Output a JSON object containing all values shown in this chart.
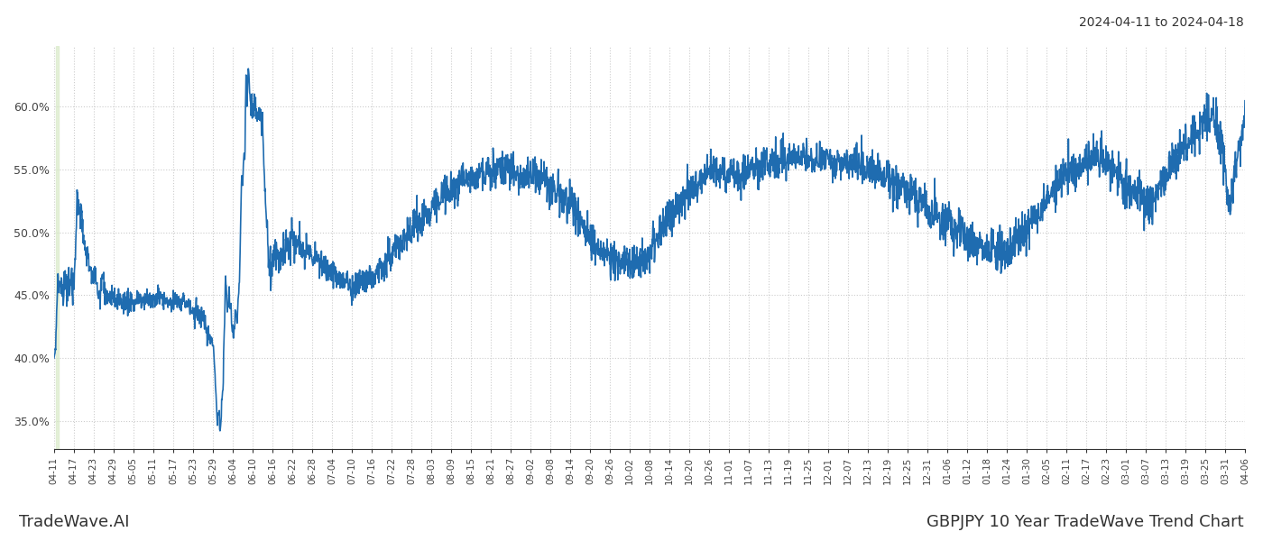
{
  "title_top_right": "2024-04-11 to 2024-04-18",
  "title_bottom_right": "GBPJPY 10 Year TradeWave Trend Chart",
  "title_bottom_left": "TradeWave.AI",
  "line_color": "#1f6cb0",
  "line_width": 1.2,
  "background_color": "#ffffff",
  "grid_color": "#cccccc",
  "grid_style": "dotted",
  "y_ticks": [
    0.35,
    0.4,
    0.45,
    0.5,
    0.55,
    0.6
  ],
  "y_labels": [
    "35.0%",
    "40.0%",
    "45.0%",
    "50.0%",
    "55.0%",
    "60.0%"
  ],
  "ylim": [
    0.328,
    0.648
  ],
  "shade_color": "#d4e8c2",
  "shade_alpha": 0.6,
  "x_tick_labels": [
    "04-11",
    "04-17",
    "04-23",
    "04-29",
    "05-05",
    "05-11",
    "05-17",
    "05-23",
    "05-29",
    "06-04",
    "06-10",
    "06-16",
    "06-22",
    "06-28",
    "07-04",
    "07-10",
    "07-16",
    "07-22",
    "07-28",
    "08-03",
    "08-09",
    "08-15",
    "08-21",
    "08-27",
    "09-02",
    "09-08",
    "09-14",
    "09-20",
    "09-26",
    "10-02",
    "10-08",
    "10-14",
    "10-20",
    "10-26",
    "11-01",
    "11-07",
    "11-13",
    "11-19",
    "11-25",
    "12-01",
    "12-07",
    "12-13",
    "12-19",
    "12-25",
    "12-31",
    "01-06",
    "01-12",
    "01-18",
    "01-24",
    "01-30",
    "02-05",
    "02-11",
    "02-17",
    "02-23",
    "03-01",
    "03-07",
    "03-13",
    "03-19",
    "03-25",
    "03-31",
    "04-06"
  ]
}
